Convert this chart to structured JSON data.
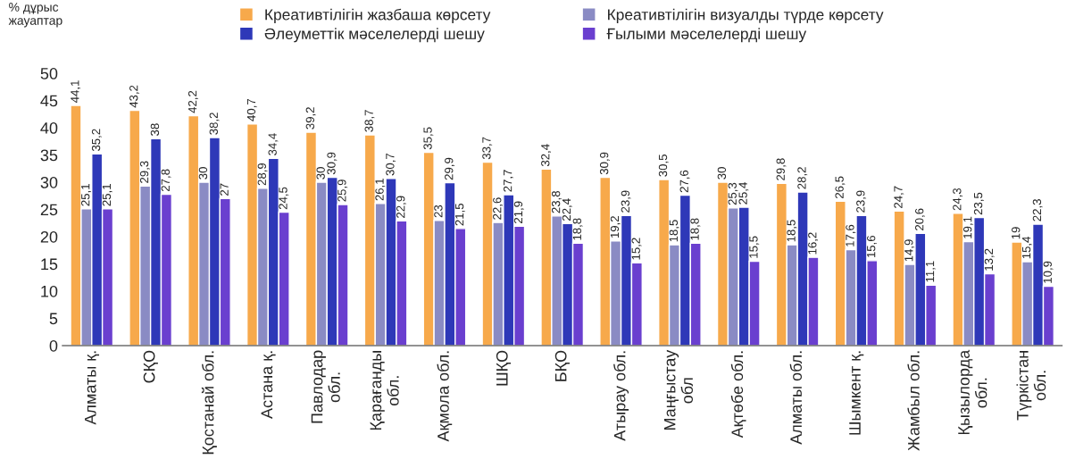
{
  "chart_data": {
    "type": "bar",
    "ylabel": "% дұрыс\nжауаптар",
    "categories": [
      "Алматы қ.",
      "СҚО",
      "Қостанай обл.",
      "Астана қ.",
      "Павлодар\nобл.",
      "Қарағанды\nобл.",
      "Ақмола обл.",
      "ШҚО",
      "БҚО",
      "Атырау обл.",
      "Маңғыстау\nобл",
      "Ақтөбе обл.",
      "Алматы обл.",
      "Шымкент қ.",
      "Жамбыл обл.",
      "Қызылорда\nобл.",
      "Түркістан\nобл."
    ],
    "series": [
      {
        "name": "Креативтілігін жазбаша көрсету",
        "color": "#f7a94b",
        "values": [
          44.1,
          43.2,
          42.2,
          40.7,
          39.2,
          38.7,
          35.5,
          33.7,
          32.4,
          30.9,
          30.5,
          30,
          29.8,
          26.5,
          24.7,
          24.3,
          19
        ],
        "value_labels": [
          "44,1",
          "43,2",
          "42,2",
          "40,7",
          "39,2",
          "38,7",
          "35,5",
          "33,7",
          "32,4",
          "30,9",
          "30,5",
          "30",
          "29,8",
          "26,5",
          "24,7",
          "24,3",
          "19"
        ]
      },
      {
        "name": "Креативтілігін визуалды түрде көрсету",
        "color": "#8a8bc4",
        "values": [
          25.1,
          29.3,
          30,
          28.9,
          30,
          26.1,
          23,
          22.6,
          23.8,
          19.2,
          18.5,
          25.3,
          18.5,
          17.6,
          14.9,
          19.1,
          15.4
        ],
        "value_labels": [
          "25,1",
          "29,3",
          "30",
          "28,9",
          "30",
          "26,1",
          "23",
          "22,6",
          "23,8",
          "19,2",
          "18,5",
          "25,3",
          "18,5",
          "17,6",
          "14,9",
          "19,1",
          "15,4"
        ]
      },
      {
        "name": "Әлеуметтік мәселелерді шешу",
        "color": "#2e38b8",
        "values": [
          35.2,
          38,
          38.2,
          34.4,
          30.9,
          30.7,
          29.9,
          27.7,
          22.4,
          23.9,
          27.6,
          25.4,
          28.2,
          23.9,
          20.6,
          23.5,
          22.3
        ],
        "value_labels": [
          "35,2",
          "38",
          "38,2",
          "34,4",
          "30,9",
          "30,7",
          "29,9",
          "27,7",
          "22,4",
          "23,9",
          "27,6",
          "25,4",
          "28,2",
          "23,9",
          "20,6",
          "23,5",
          "22,3"
        ]
      },
      {
        "name": "Ғылыми мәселелерді шешу",
        "color": "#6a3fcf",
        "values": [
          25.1,
          27.8,
          27,
          24.5,
          25.9,
          22.9,
          21.5,
          21.9,
          18.8,
          15.2,
          18.8,
          15.5,
          16.2,
          15.6,
          11.1,
          13.2,
          10.9
        ],
        "value_labels": [
          "25,1",
          "27,8",
          "27",
          "24,5",
          "25,9",
          "22,9",
          "21,5",
          "21,9",
          "18,8",
          "15,2",
          "18,8",
          "15,5",
          "16,2",
          "15,6",
          "11,1",
          "13,2",
          "10,9"
        ]
      }
    ],
    "ylim": [
      0,
      50
    ],
    "yticks": [
      0,
      5,
      10,
      15,
      20,
      25,
      30,
      35,
      40,
      45,
      50
    ],
    "grid": false,
    "legend": "top"
  }
}
